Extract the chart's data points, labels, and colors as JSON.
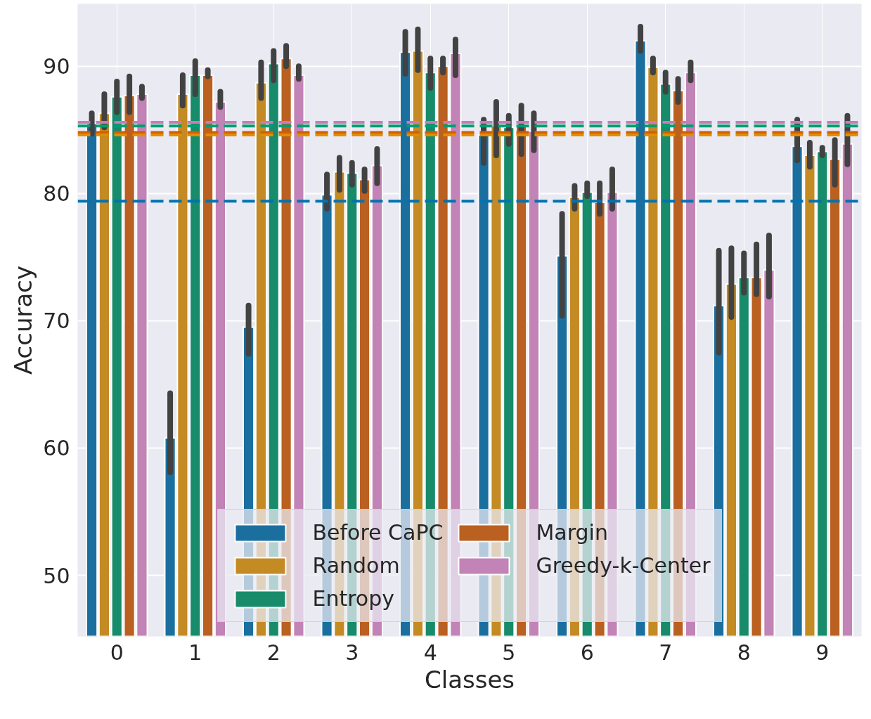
{
  "chart_data": {
    "type": "bar",
    "xlabel": "Classes",
    "ylabel": "Accuracy",
    "categories": [
      "0",
      "1",
      "2",
      "3",
      "4",
      "5",
      "6",
      "7",
      "8",
      "9"
    ],
    "ylim": [
      45.2,
      94.9
    ],
    "yticks": [
      50,
      60,
      70,
      80,
      90
    ],
    "grid": true,
    "legend": "bottom",
    "series": [
      {
        "name": "Before CaPC",
        "color": "#1a6f9f",
        "values": [
          85.5,
          60.8,
          69.5,
          79.9,
          91.1,
          84.6,
          75.1,
          92.0,
          71.2,
          83.7
        ],
        "errors": [
          [
            84.7,
            86.3
          ],
          [
            58.1,
            64.3
          ],
          [
            67.4,
            71.2
          ],
          [
            78.8,
            81.5
          ],
          [
            89.4,
            92.7
          ],
          [
            82.4,
            85.8
          ],
          [
            70.4,
            78.4
          ],
          [
            91.2,
            93.1
          ],
          [
            67.5,
            75.5
          ],
          [
            82.6,
            85.8
          ]
        ]
      },
      {
        "name": "Random",
        "color": "#c48a23",
        "values": [
          86.3,
          87.8,
          88.7,
          81.7,
          91.2,
          85.3,
          79.7,
          89.9,
          72.9,
          83.0
        ],
        "errors": [
          [
            85.2,
            87.8
          ],
          [
            86.9,
            89.3
          ],
          [
            87.5,
            90.3
          ],
          [
            80.3,
            82.8
          ],
          [
            89.7,
            92.9
          ],
          [
            83.0,
            87.2
          ],
          [
            78.8,
            80.6
          ],
          [
            89.5,
            90.6
          ],
          [
            70.3,
            75.7
          ],
          [
            82.1,
            84.0
          ]
        ]
      },
      {
        "name": "Entropy",
        "color": "#178b6a",
        "values": [
          87.6,
          89.3,
          90.2,
          81.6,
          89.5,
          85.2,
          80.1,
          88.6,
          73.4,
          83.3
        ],
        "errors": [
          [
            86.4,
            88.8
          ],
          [
            87.8,
            90.4
          ],
          [
            88.9,
            91.2
          ],
          [
            80.7,
            82.4
          ],
          [
            88.3,
            90.6
          ],
          [
            83.9,
            86.1
          ],
          [
            79.8,
            80.8
          ],
          [
            88.0,
            89.5
          ],
          [
            72.2,
            75.3
          ],
          [
            83.0,
            83.6
          ]
        ]
      },
      {
        "name": "Margin",
        "color": "#ba6020",
        "values": [
          87.7,
          89.3,
          90.6,
          81.1,
          90.0,
          85.3,
          79.3,
          88.1,
          73.4,
          82.7
        ],
        "errors": [
          [
            86.4,
            89.2
          ],
          [
            89.2,
            89.7
          ],
          [
            90.0,
            91.6
          ],
          [
            80.2,
            81.9
          ],
          [
            89.5,
            90.6
          ],
          [
            83.1,
            86.9
          ],
          [
            78.4,
            80.8
          ],
          [
            87.2,
            89.0
          ],
          [
            72.1,
            76.0
          ],
          [
            80.7,
            84.2
          ]
        ]
      },
      {
        "name": "Greedy-k-Center",
        "color": "#c283b6",
        "values": [
          87.8,
          87.2,
          89.3,
          82.2,
          91.0,
          84.9,
          80.1,
          89.5,
          74.0,
          83.9
        ],
        "errors": [
          [
            87.5,
            88.4
          ],
          [
            86.8,
            88.0
          ],
          [
            89.0,
            90.0
          ],
          [
            80.8,
            83.5
          ],
          [
            89.3,
            92.1
          ],
          [
            83.4,
            86.3
          ],
          [
            78.8,
            81.9
          ],
          [
            88.9,
            90.3
          ],
          [
            71.9,
            76.7
          ],
          [
            82.3,
            86.1
          ]
        ]
      }
    ],
    "ref_lines": [
      {
        "axis": "y",
        "value": 85.6,
        "color": "#cc78bc",
        "line_style": "dashed"
      },
      {
        "axis": "y",
        "value": 85.3,
        "color": "#029e73",
        "line_style": "dashed"
      },
      {
        "axis": "y",
        "value": 84.8,
        "color": "#d55e00",
        "line_style": "dashed"
      },
      {
        "axis": "y",
        "value": 84.6,
        "color": "#de8f05",
        "line_style": "dashed"
      },
      {
        "axis": "y",
        "value": 79.4,
        "color": "#0173b2",
        "line_style": "dashed"
      }
    ]
  }
}
